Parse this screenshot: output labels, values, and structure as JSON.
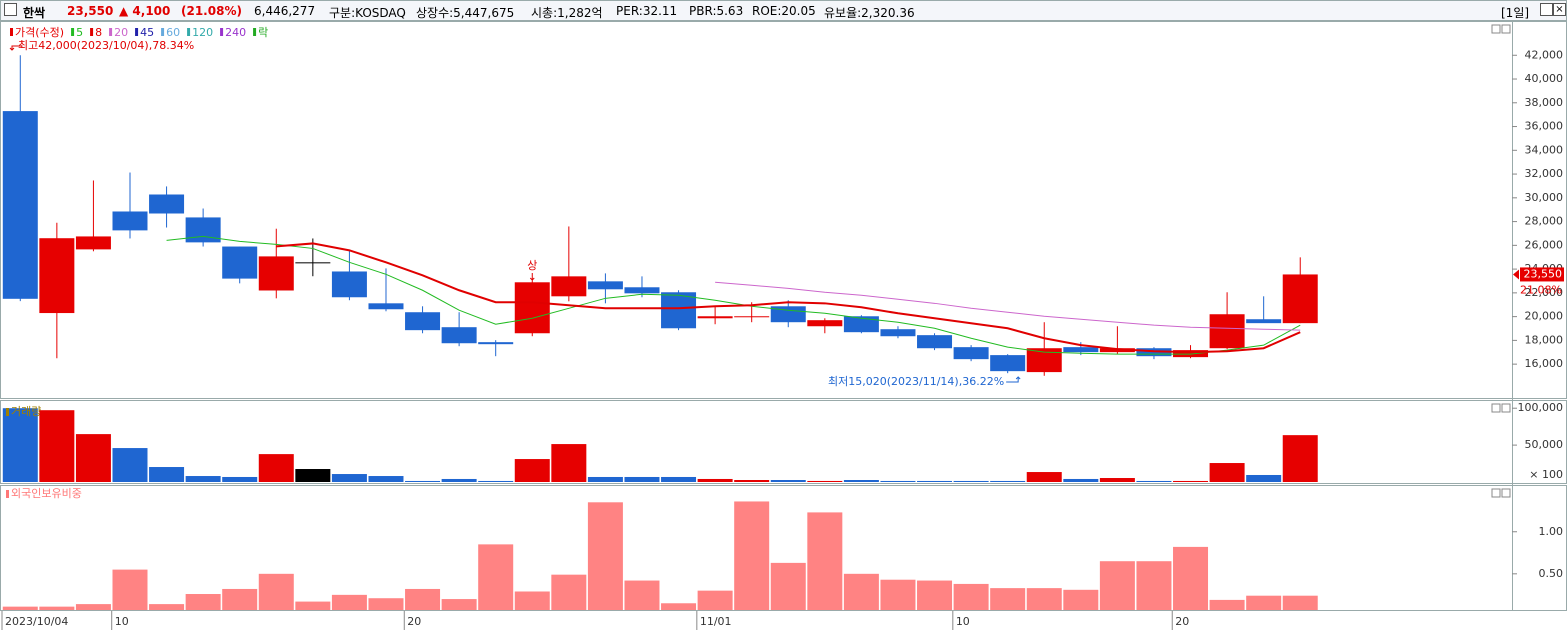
{
  "header": {
    "name": "한싹",
    "price": "23,550",
    "change": "▲ 4,100",
    "change_pct": "(21.08%)",
    "volume": "6,446,277",
    "market": "구분:KOSDAQ",
    "shares": "상장수:5,447,675",
    "cap": "시총:1,282억",
    "per": "PER:32.11",
    "pbr": "PBR:5.63",
    "roe": "ROE:20.05",
    "reserve": "유보율:2,320.36",
    "period": "[1일]"
  },
  "chart_data": [
    {
      "type": "candlestick",
      "price_label": "가격(수정)",
      "price_label_color": "#e60000",
      "up_color": "#e60000",
      "down_color": "#1f66d1",
      "flat_color": "#000000",
      "categories": [
        "2023/10/04",
        null,
        null,
        "10",
        null,
        null,
        null,
        null,
        null,
        null,
        null,
        "20",
        null,
        null,
        null,
        null,
        null,
        null,
        null,
        "11/01",
        null,
        null,
        null,
        null,
        null,
        null,
        "10",
        null,
        null,
        null,
        null,
        null,
        "20",
        null,
        null,
        null
      ],
      "open": [
        37300,
        20300,
        25660,
        28850,
        30280,
        28350,
        25900,
        22200,
        24570,
        23800,
        21120,
        20370,
        19110,
        17850,
        18600,
        21710,
        22970,
        22470,
        22050,
        19860,
        19950,
        20870,
        19190,
        20030,
        18940,
        18440,
        17430,
        16760,
        15330,
        17430,
        17010,
        17340,
        16590,
        17340,
        19780,
        19450
      ],
      "high": [
        42000,
        27900,
        31460,
        32130,
        30960,
        29100,
        25900,
        27400,
        26580,
        25580,
        24060,
        20870,
        20370,
        18020,
        23060,
        27590,
        23640,
        23390,
        22220,
        20870,
        21210,
        21380,
        19860,
        20120,
        19190,
        18600,
        17600,
        16840,
        19530,
        17850,
        19190,
        17430,
        17600,
        22050,
        21710,
        24990
      ],
      "low": [
        21300,
        16500,
        25500,
        26580,
        27500,
        25900,
        22800,
        21540,
        23400,
        21380,
        20450,
        18600,
        17510,
        16670,
        18350,
        21290,
        21120,
        21630,
        18860,
        19360,
        19530,
        19110,
        18600,
        18600,
        18180,
        17180,
        16250,
        15240,
        15020,
        16760,
        16840,
        16420,
        16500,
        17260,
        19530,
        19450
      ],
      "close": [
        21500,
        26600,
        26750,
        27260,
        28680,
        26250,
        23200,
        25070,
        24570,
        21630,
        20620,
        18860,
        17760,
        17680,
        22890,
        23390,
        22300,
        21960,
        19020,
        20030,
        20030,
        19530,
        19700,
        18690,
        18350,
        17340,
        16420,
        15410,
        17340,
        17010,
        17340,
        16670,
        17180,
        20200,
        19450,
        23550
      ],
      "series": [
        {
          "name": "5",
          "color": "#22bb22",
          "values": [
            null,
            null,
            null,
            null,
            26420,
            26750,
            26330,
            26080,
            25740,
            24570,
            23560,
            22220,
            20540,
            19360,
            19860,
            20700,
            21540,
            21880,
            21800,
            21380,
            20870,
            20540,
            20280,
            19860,
            19530,
            19020,
            18180,
            17430,
            17010,
            16920,
            16840,
            16840,
            16840,
            17180,
            17600,
            19280
          ]
        },
        {
          "name": "8",
          "color": "#e00000",
          "values": [
            null,
            null,
            null,
            null,
            null,
            null,
            null,
            25910,
            26160,
            25580,
            24570,
            23480,
            22220,
            21210,
            21210,
            20960,
            20700,
            20700,
            20700,
            20870,
            20960,
            21210,
            21120,
            20790,
            20280,
            19860,
            19440,
            19020,
            18180,
            17600,
            17260,
            17090,
            17010,
            17090,
            17340,
            18690
          ]
        },
        {
          "name": "20",
          "color": "#cc66cc",
          "values": [
            null,
            null,
            null,
            null,
            null,
            null,
            null,
            null,
            null,
            null,
            null,
            null,
            null,
            null,
            null,
            null,
            null,
            null,
            null,
            22890,
            22640,
            22380,
            22050,
            21800,
            21460,
            21120,
            20700,
            20370,
            20030,
            19780,
            19530,
            19280,
            19110,
            19020,
            18940,
            18860
          ]
        }
      ],
      "legend_extra": [
        {
          "name": "45",
          "color": "#2222aa"
        },
        {
          "name": "60",
          "color": "#66aadd"
        },
        {
          "name": "120",
          "color": "#33aaaa"
        },
        {
          "name": "240",
          "color": "#9933cc"
        },
        {
          "name": "락",
          "color": "#22aa22"
        }
      ],
      "annotations": {
        "high": "최고42,000(2023/10/04),78.34%",
        "low": "최저15,020(2023/11/14),36.22%",
        "signal": "상"
      },
      "last_label": "23,550",
      "last_pct": "21.08%",
      "ylim": [
        13150,
        44800
      ],
      "yticks": [
        {
          "value": 16000,
          "label": "16,000"
        },
        {
          "value": 18000,
          "label": "18,000"
        },
        {
          "value": 20000,
          "label": "20,000"
        },
        {
          "value": 22000,
          "label": "22,000"
        },
        {
          "value": 24000,
          "label": "24,000"
        },
        {
          "value": 26000,
          "label": "26,000"
        },
        {
          "value": 28000,
          "label": "28,000"
        },
        {
          "value": 30000,
          "label": "30,000"
        },
        {
          "value": 32000,
          "label": "32,000"
        },
        {
          "value": 34000,
          "label": "34,000"
        },
        {
          "value": 36000,
          "label": "36,000"
        },
        {
          "value": 38000,
          "label": "38,000"
        },
        {
          "value": 40000,
          "label": "40,000"
        },
        {
          "value": 42000,
          "label": "42,000"
        }
      ]
    },
    {
      "type": "bar",
      "title": "거래량",
      "title_color": "#a08000",
      "unit": "× 100",
      "values": [
        100000,
        97300,
        64900,
        46000,
        20300,
        8100,
        6800,
        37800,
        17600,
        10800,
        8100,
        1400,
        4100,
        1400,
        31100,
        51400,
        6800,
        6800,
        6800,
        4100,
        2700,
        2700,
        1400,
        2700,
        1400,
        1400,
        1400,
        1400,
        13500,
        4100,
        5400,
        1400,
        1400,
        25700,
        9500,
        63500
      ],
      "ylim": [
        0,
        103000
      ],
      "yticks": [
        {
          "value": 50000,
          "label": "50,000"
        },
        {
          "value": 100000,
          "label": "100,000"
        }
      ]
    },
    {
      "type": "bar",
      "title": "외국인보유비중",
      "title_color": "#ff7777",
      "color": "#ff8383",
      "values": [
        0.11,
        0.11,
        0.14,
        0.55,
        0.14,
        0.26,
        0.32,
        0.5,
        0.17,
        0.25,
        0.21,
        0.32,
        0.2,
        0.85,
        0.29,
        0.49,
        1.35,
        0.42,
        0.15,
        0.3,
        1.36,
        0.63,
        1.23,
        0.5,
        0.43,
        0.42,
        0.38,
        0.33,
        0.33,
        0.31,
        0.65,
        0.65,
        0.82,
        0.19,
        0.24,
        0.24
      ],
      "ylim": [
        0.07,
        1.52
      ],
      "yticks": [
        {
          "value": 0.5,
          "label": "0.50"
        },
        {
          "value": 1,
          "label": "1.00"
        }
      ]
    }
  ]
}
